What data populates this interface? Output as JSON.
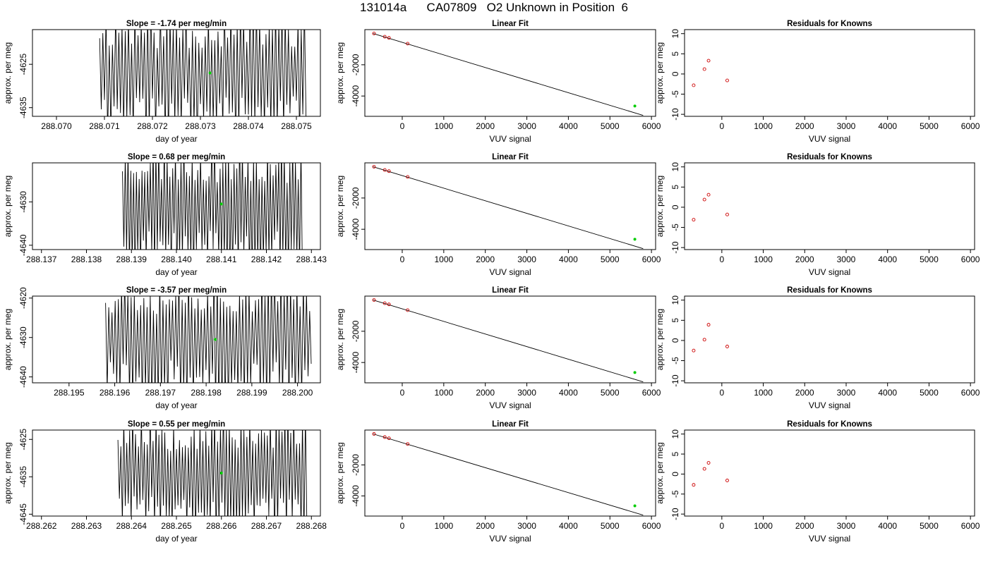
{
  "figure_title": "131014a      CA07809   O2 Unknown in Position  6",
  "colors": {
    "axis": "#000000",
    "trace": "#000000",
    "known_point": "#cc0000",
    "unknown_point": "#00cc00"
  },
  "chart_data": [
    {
      "type": "line",
      "title": "Slope =  -1.74  per meg/min",
      "xlabel": "day of year",
      "ylabel": "approx. per meg",
      "xlim": [
        288.0695,
        288.0755
      ],
      "ylim": [
        -4637,
        -4617
      ],
      "xticks": [
        "288.070",
        "288.071",
        "288.072",
        "288.073",
        "288.074",
        "288.075"
      ],
      "yticks": [
        "-4625",
        "-4635"
      ],
      "signal": {
        "x_start": 288.0709,
        "x_end": 288.0752,
        "center": -4627,
        "amplitude": 12,
        "seed": 11
      },
      "series": [
        {
          "values": []
        }
      ],
      "highlight_point": {
        "x": 288.0732,
        "y": -4627
      }
    },
    {
      "type": "scatter",
      "title": "Linear Fit",
      "xlabel": "VUV signal",
      "ylabel": "approx. per meg",
      "xlim": [
        -900,
        6100
      ],
      "ylim": [
        -5300,
        250
      ],
      "xticks": [
        "0",
        "1000",
        "2000",
        "3000",
        "4000",
        "5000",
        "6000"
      ],
      "yticks": [
        "-2000",
        "-4000"
      ],
      "fit_line": {
        "x": [
          -700,
          5800
        ],
        "y": [
          0,
          -5240
        ]
      },
      "known_points": {
        "x": [
          -680,
          -420,
          -320,
          130
        ],
        "y": [
          0,
          -205,
          -280,
          -650
        ]
      },
      "unknown_point": {
        "x": 5600,
        "y": -4640
      }
    },
    {
      "type": "scatter",
      "title": "Residuals for Knowns",
      "xlabel": "VUV signal",
      "ylabel": "approx. per meg",
      "xlim": [
        -900,
        6100
      ],
      "ylim": [
        -10.5,
        11
      ],
      "xticks": [
        "0",
        "1000",
        "2000",
        "3000",
        "4000",
        "5000",
        "6000"
      ],
      "yticks": [
        "10",
        "5",
        "0",
        "-5",
        "-10"
      ],
      "points": {
        "x": [
          -680,
          -420,
          -320,
          130
        ],
        "y": [
          -2.8,
          1.2,
          3.3,
          -1.6
        ]
      }
    },
    {
      "type": "line",
      "title": "Slope =  0.68  per meg/min",
      "xlabel": "day of year",
      "ylabel": "approx. per meg",
      "xlim": [
        288.1368,
        288.1432
      ],
      "ylim": [
        -4641,
        -4621
      ],
      "xticks": [
        "288.137",
        "288.138",
        "288.139",
        "288.140",
        "288.141",
        "288.142",
        "288.143"
      ],
      "yticks": [
        "-4630",
        "-4640"
      ],
      "signal": {
        "x_start": 288.1388,
        "x_end": 288.1428,
        "center": -4631,
        "amplitude": 12,
        "seed": 23
      },
      "series": [
        {
          "values": []
        }
      ],
      "highlight_point": {
        "x": 288.141,
        "y": -4630.5
      }
    },
    {
      "type": "scatter",
      "title": "Linear Fit",
      "xlabel": "VUV signal",
      "ylabel": "approx. per meg",
      "xlim": [
        -900,
        6100
      ],
      "ylim": [
        -5300,
        250
      ],
      "xticks": [
        "0",
        "1000",
        "2000",
        "3000",
        "4000",
        "5000",
        "6000"
      ],
      "yticks": [
        "-2000",
        "-4000"
      ],
      "fit_line": {
        "x": [
          -700,
          5800
        ],
        "y": [
          0,
          -5240
        ]
      },
      "known_points": {
        "x": [
          -680,
          -420,
          -320,
          130
        ],
        "y": [
          0,
          -205,
          -280,
          -650
        ]
      },
      "unknown_point": {
        "x": 5600,
        "y": -4640
      }
    },
    {
      "type": "scatter",
      "title": "Residuals for Knowns",
      "xlabel": "VUV signal",
      "ylabel": "approx. per meg",
      "xlim": [
        -900,
        6100
      ],
      "ylim": [
        -10.5,
        11
      ],
      "xticks": [
        "0",
        "1000",
        "2000",
        "3000",
        "4000",
        "5000",
        "6000"
      ],
      "yticks": [
        "10",
        "5",
        "0",
        "-5",
        "-10"
      ],
      "points": {
        "x": [
          -680,
          -420,
          -320,
          130
        ],
        "y": [
          -3.1,
          1.9,
          3.1,
          -1.8
        ]
      }
    },
    {
      "type": "line",
      "title": "Slope =  -3.57  per meg/min",
      "xlabel": "day of year",
      "ylabel": "approx. per meg",
      "xlim": [
        288.1942,
        288.2005
      ],
      "ylim": [
        -4641.5,
        -4619.5
      ],
      "xticks": [
        "288.195",
        "288.196",
        "288.197",
        "288.198",
        "288.199",
        "288.200"
      ],
      "yticks": [
        "-4620",
        "-4630",
        "-4640"
      ],
      "signal": {
        "x_start": 288.1958,
        "x_end": 288.2003,
        "center": -4630,
        "amplitude": 13,
        "seed": 37
      },
      "series": [
        {
          "values": []
        }
      ],
      "highlight_point": {
        "x": 288.1982,
        "y": -4630.5
      }
    },
    {
      "type": "scatter",
      "title": "Linear Fit",
      "xlabel": "VUV signal",
      "ylabel": "approx. per meg",
      "xlim": [
        -900,
        6100
      ],
      "ylim": [
        -5300,
        250
      ],
      "xticks": [
        "0",
        "1000",
        "2000",
        "3000",
        "4000",
        "5000",
        "6000"
      ],
      "yticks": [
        "-2000",
        "-4000"
      ],
      "fit_line": {
        "x": [
          -700,
          5800
        ],
        "y": [
          0,
          -5240
        ]
      },
      "known_points": {
        "x": [
          -680,
          -420,
          -320,
          130
        ],
        "y": [
          0,
          -205,
          -280,
          -650
        ]
      },
      "unknown_point": {
        "x": 5600,
        "y": -4640
      }
    },
    {
      "type": "scatter",
      "title": "Residuals for Knowns",
      "xlabel": "VUV signal",
      "ylabel": "approx. per meg",
      "xlim": [
        -900,
        6100
      ],
      "ylim": [
        -10.5,
        11
      ],
      "xticks": [
        "0",
        "1000",
        "2000",
        "3000",
        "4000",
        "5000",
        "6000"
      ],
      "yticks": [
        "10",
        "5",
        "0",
        "-5",
        "-10"
      ],
      "points": {
        "x": [
          -680,
          -420,
          -320,
          130
        ],
        "y": [
          -2.5,
          0.2,
          3.9,
          -1.5
        ]
      }
    },
    {
      "type": "line",
      "title": "Slope =  0.55  per meg/min",
      "xlabel": "day of year",
      "ylabel": "approx. per meg",
      "xlim": [
        288.2618,
        288.2682
      ],
      "ylim": [
        -4645.5,
        -4622.5
      ],
      "xticks": [
        "288.262",
        "288.263",
        "288.264",
        "288.265",
        "288.266",
        "288.267",
        "288.268"
      ],
      "yticks": [
        "-4625",
        "-4635",
        "-4645"
      ],
      "signal": {
        "x_start": 288.2637,
        "x_end": 288.2679,
        "center": -4634,
        "amplitude": 13,
        "seed": 53
      },
      "series": [
        {
          "values": []
        }
      ],
      "highlight_point": {
        "x": 288.266,
        "y": -4634
      }
    },
    {
      "type": "scatter",
      "title": "Linear Fit",
      "xlabel": "VUV signal",
      "ylabel": "approx. per meg",
      "xlim": [
        -900,
        6100
      ],
      "ylim": [
        -5300,
        250
      ],
      "xticks": [
        "0",
        "1000",
        "2000",
        "3000",
        "4000",
        "5000",
        "6000"
      ],
      "yticks": [
        "-2000",
        "-4000"
      ],
      "fit_line": {
        "x": [
          -700,
          5800
        ],
        "y": [
          0,
          -5240
        ]
      },
      "known_points": {
        "x": [
          -680,
          -420,
          -320,
          130
        ],
        "y": [
          0,
          -205,
          -280,
          -650
        ]
      },
      "unknown_point": {
        "x": 5600,
        "y": -4640
      }
    },
    {
      "type": "scatter",
      "title": "Residuals for Knowns",
      "xlabel": "VUV signal",
      "ylabel": "approx. per meg",
      "xlim": [
        -900,
        6100
      ],
      "ylim": [
        -10.5,
        11
      ],
      "xticks": [
        "0",
        "1000",
        "2000",
        "3000",
        "4000",
        "5000",
        "6000"
      ],
      "yticks": [
        "10",
        "5",
        "0",
        "-5",
        "-10"
      ],
      "points": {
        "x": [
          -680,
          -420,
          -320,
          130
        ],
        "y": [
          -2.7,
          1.3,
          2.8,
          -1.6
        ]
      }
    }
  ]
}
